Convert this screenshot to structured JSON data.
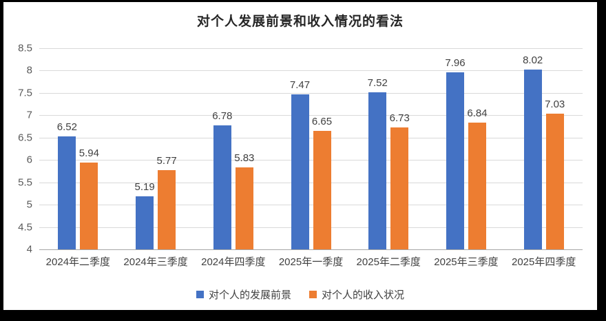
{
  "title": "对个人发展前景和收入情况的看法",
  "colors": {
    "series_development": "#4472C4",
    "series_income": "#ED7D31",
    "gridline": "#D9D9D9",
    "axis_line": "#A6A6A6",
    "tick_text": "#595959",
    "label_text": "#404040",
    "frame": "#000000",
    "background": "#FFFFFF"
  },
  "chart_data": {
    "type": "bar",
    "title": "对个人发展前景和收入情况的看法",
    "categories": [
      "2024年二季度",
      "2024年三季度",
      "2024年四季度",
      "2025年一季度",
      "2025年二季度",
      "2025年三季度",
      "2025年四季度"
    ],
    "series": [
      {
        "name": "对个人的发展前景",
        "color": "#4472C4",
        "values": [
          6.52,
          5.19,
          6.78,
          7.47,
          7.52,
          7.96,
          8.02
        ]
      },
      {
        "name": "对个人的收入状况",
        "color": "#ED7D31",
        "values": [
          5.94,
          5.77,
          5.83,
          6.65,
          6.73,
          6.84,
          7.03
        ]
      }
    ],
    "ylim": [
      4,
      8.5
    ],
    "yticks": [
      4,
      4.5,
      5,
      5.5,
      6,
      6.5,
      7,
      7.5,
      8,
      8.5
    ],
    "ytick_labels": [
      "4",
      "4.5",
      "5",
      "5.5",
      "6",
      "6.5",
      "7",
      "7.5",
      "8",
      "8.5"
    ],
    "xlabel": "",
    "ylabel": "",
    "grid": true,
    "data_labels": true,
    "data_label_decimals": 2,
    "legend_position": "bottom"
  }
}
